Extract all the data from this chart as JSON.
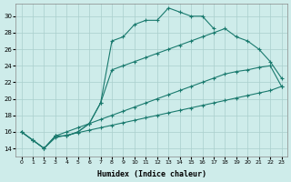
{
  "xlabel": "Humidex (Indice chaleur)",
  "xlim": [
    -0.5,
    23.5
  ],
  "ylim": [
    13.0,
    31.5
  ],
  "xticks": [
    0,
    1,
    2,
    3,
    4,
    5,
    6,
    7,
    8,
    9,
    10,
    11,
    12,
    13,
    14,
    15,
    16,
    17,
    18,
    19,
    20,
    21,
    22,
    23
  ],
  "yticks": [
    14,
    16,
    18,
    20,
    22,
    24,
    26,
    28,
    30
  ],
  "background_color": "#ceecea",
  "grid_color": "#aacfcc",
  "line_color": "#1a7a6e",
  "curves": [
    {
      "x": [
        0,
        1,
        2,
        3,
        4,
        5,
        6,
        7,
        8,
        9,
        10,
        11,
        12,
        13,
        14,
        15,
        16,
        17
      ],
      "y": [
        16,
        15,
        14,
        15.5,
        15.5,
        16.0,
        17.0,
        19.5,
        27.0,
        27.5,
        29.0,
        29.5,
        29.5,
        31.0,
        30.5,
        30.0,
        30.0,
        28.5
      ]
    },
    {
      "x": [
        0,
        1,
        2,
        3,
        4,
        5,
        6,
        7,
        8,
        9,
        10,
        11,
        12,
        13,
        14,
        15,
        16,
        17,
        18,
        19,
        20,
        21,
        22,
        23
      ],
      "y": [
        16,
        15,
        14,
        15.5,
        16.0,
        16.5,
        17.0,
        17.5,
        18.0,
        18.5,
        19.0,
        19.5,
        20.0,
        20.5,
        21.0,
        21.5,
        22.0,
        22.5,
        23.0,
        23.3,
        23.5,
        23.8,
        24.0,
        21.5
      ]
    },
    {
      "x": [
        3,
        4,
        5,
        6,
        7,
        8,
        9,
        10,
        11,
        12,
        13,
        14,
        15,
        16,
        17,
        18,
        19,
        20,
        21,
        22,
        23
      ],
      "y": [
        15.5,
        15.5,
        16.0,
        17.0,
        19.5,
        23.5,
        24.0,
        24.5,
        25.0,
        25.5,
        26.0,
        26.5,
        27.0,
        27.5,
        28.0,
        28.5,
        27.5,
        27.0,
        26.0,
        24.5,
        22.5
      ]
    },
    {
      "x": [
        0,
        1,
        2,
        3,
        4,
        5,
        6,
        7,
        8,
        9,
        10,
        11,
        12,
        13,
        14,
        15,
        16,
        17,
        18,
        19,
        20,
        21,
        22,
        23
      ],
      "y": [
        16,
        15,
        14,
        15.3,
        15.6,
        15.9,
        16.2,
        16.5,
        16.8,
        17.1,
        17.4,
        17.7,
        18.0,
        18.3,
        18.6,
        18.9,
        19.2,
        19.5,
        19.8,
        20.1,
        20.4,
        20.7,
        21.0,
        21.5
      ]
    }
  ]
}
